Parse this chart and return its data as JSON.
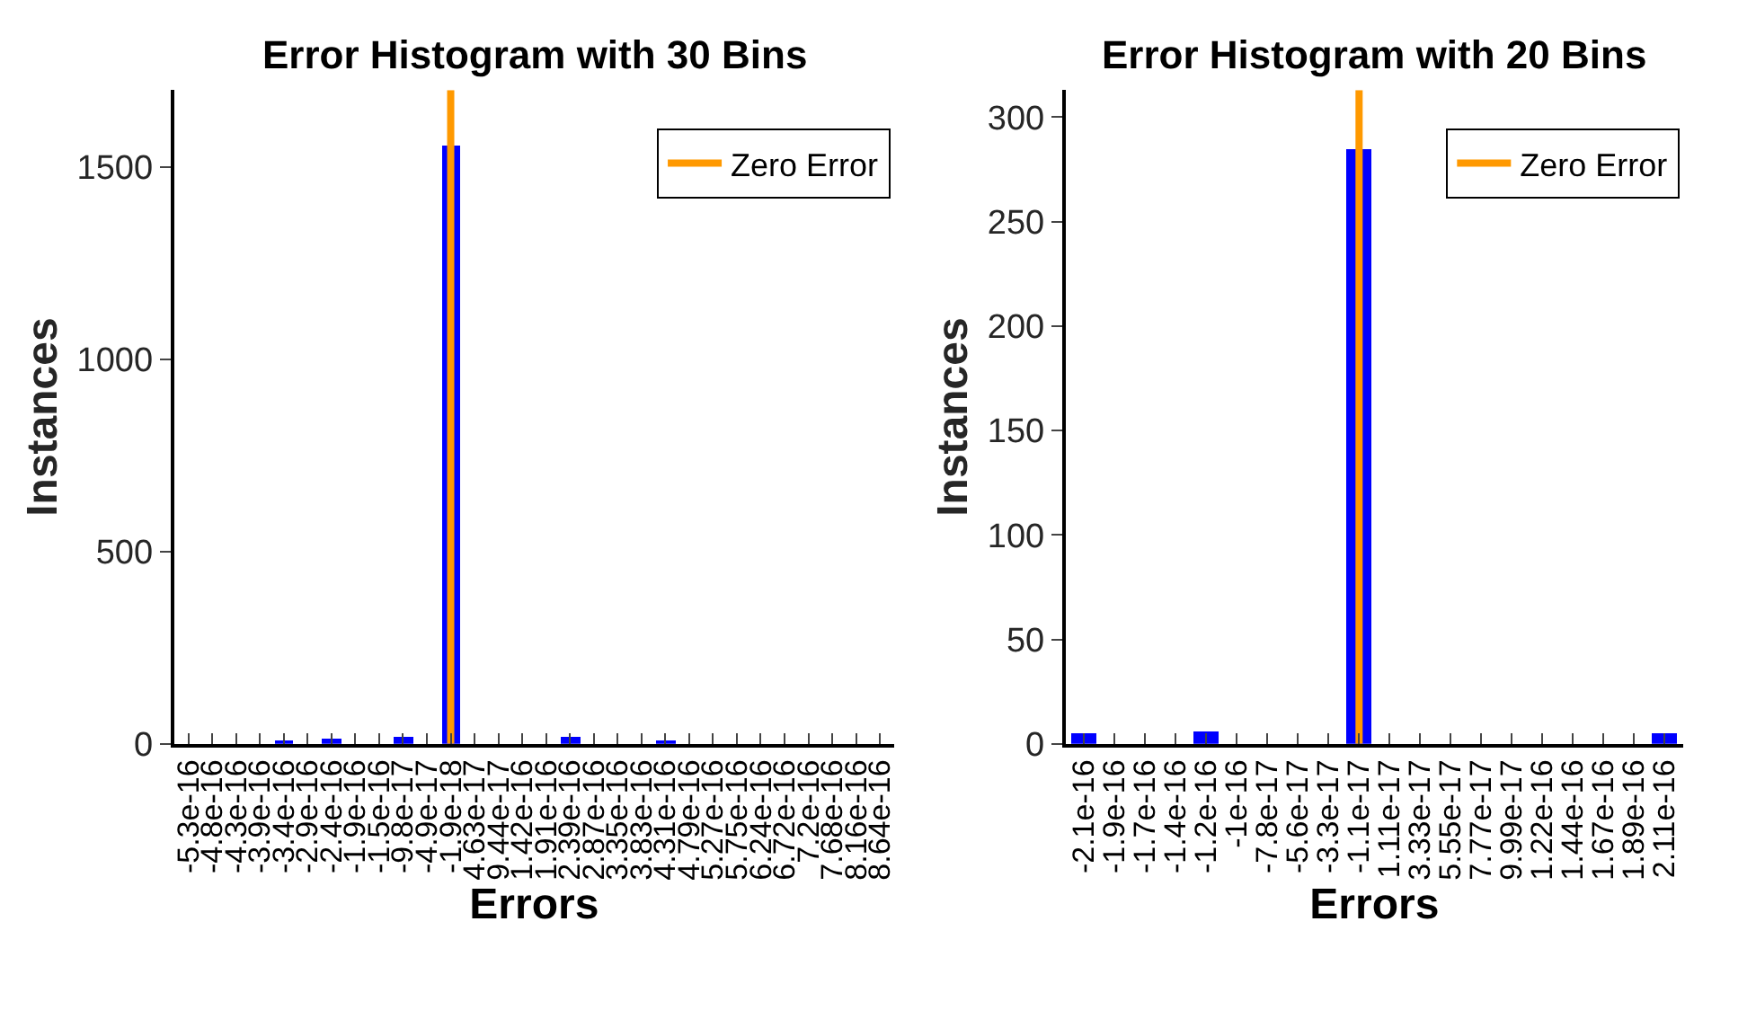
{
  "chart_data": [
    {
      "type": "bar",
      "title": "Error Histogram with 30 Bins",
      "xlabel": "Errors",
      "ylabel": "Instances",
      "legend": "top right",
      "categories": [
        "-5.3e-16",
        "-4.8e-16",
        "-4.3e-16",
        "-3.9e-16",
        "-3.4e-16",
        "-2.9e-16",
        "-2.4e-16",
        "-1.9e-16",
        "-1.5e-16",
        "-9.8e-17",
        "-4.9e-17",
        "-1.9e-18",
        "4.63e-17",
        "9.44e-17",
        "1.42e-16",
        "1.91e-16",
        "2.39e-16",
        "2.87e-16",
        "3.35e-16",
        "3.83e-16",
        "4.31e-16",
        "4.79e-16",
        "5.27e-16",
        "5.75e-16",
        "6.24e-16",
        "6.72e-16",
        "7.2e-16",
        "7.68e-16",
        "8.16e-16",
        "8.64e-16"
      ],
      "ylim": [
        0,
        1700
      ],
      "yticks": [
        0,
        500,
        1000,
        1500
      ],
      "series": [
        {
          "color": "#0000ff",
          "values": [
            0,
            0,
            0,
            0,
            7,
            0,
            13,
            0,
            0,
            18,
            0,
            1555,
            0,
            0,
            0,
            0,
            18,
            0,
            0,
            0,
            6,
            0,
            0,
            0,
            0,
            0,
            0,
            0,
            0,
            0
          ]
        },
        {
          "type": "line",
          "name": "Zero Error",
          "color": "#ff9900",
          "x": [
            "-1.9e-18",
            "-1.9e-18"
          ],
          "values": [
            0,
            1700
          ]
        }
      ]
    },
    {
      "type": "bar",
      "title": "Error Histogram with 20 Bins",
      "xlabel": "Errors",
      "ylabel": "Instances",
      "legend": "top right",
      "categories": [
        "-2.1e-16",
        "-1.9e-16",
        "-1.7e-16",
        "-1.4e-16",
        "-1.2e-16",
        "-1e-16",
        "-7.8e-17",
        "-5.6e-17",
        "-3.3e-17",
        "-1.1e-17",
        "1.11e-17",
        "3.33e-17",
        "5.55e-17",
        "7.77e-17",
        "9.99e-17",
        "1.22e-16",
        "1.44e-16",
        "1.67e-16",
        "1.89e-16",
        "2.11e-16"
      ],
      "ylim": [
        0,
        313
      ],
      "yticks": [
        0,
        50,
        100,
        150,
        200,
        250,
        300
      ],
      "series": [
        {
          "color": "#0000ff",
          "values": [
            5,
            0,
            0,
            0,
            6,
            0,
            0,
            0,
            0,
            285,
            0,
            0,
            0,
            0,
            0,
            0,
            0,
            0,
            0,
            5
          ]
        },
        {
          "type": "line",
          "name": "Zero Error",
          "color": "#ff9900",
          "x": [
            "-1.1e-17",
            "-1.1e-17"
          ],
          "values": [
            0,
            313
          ]
        }
      ]
    }
  ]
}
